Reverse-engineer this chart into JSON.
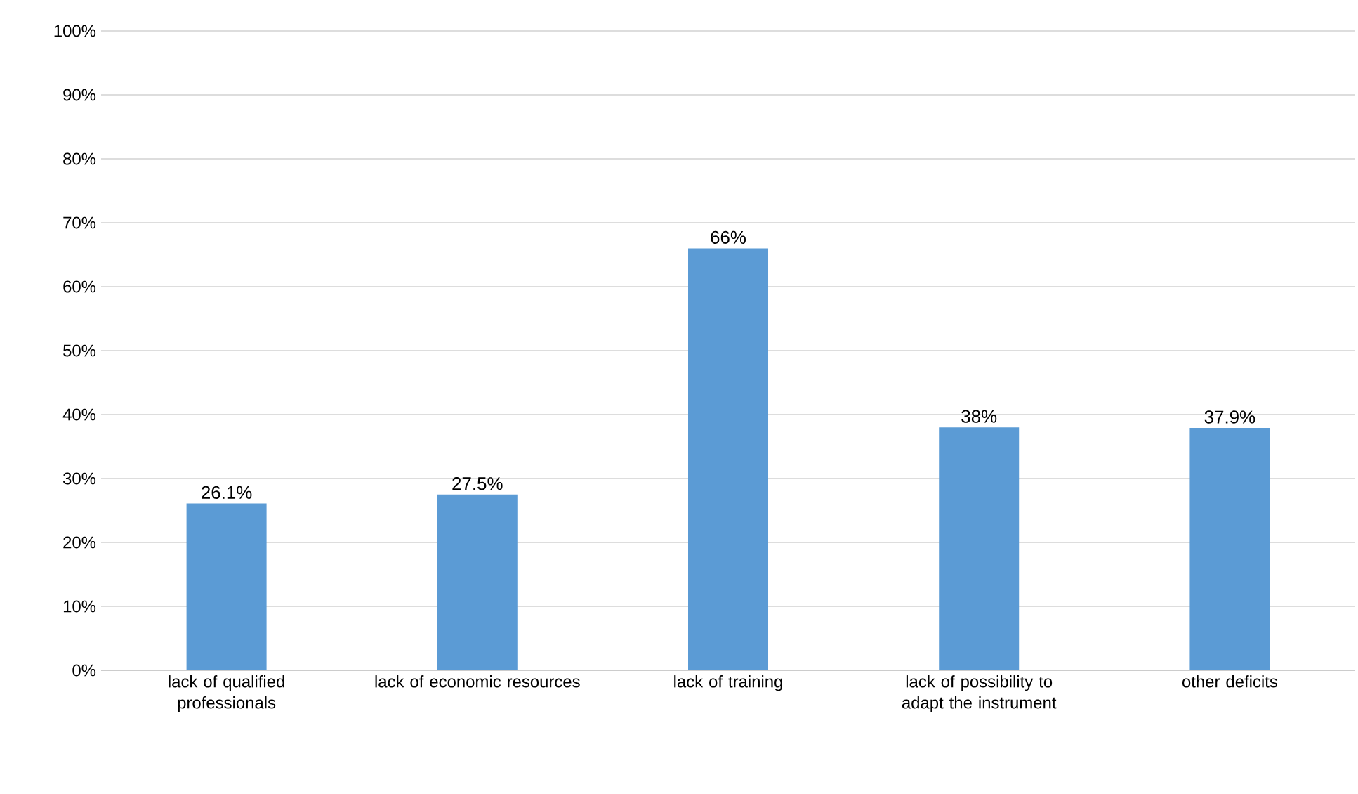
{
  "chart_data": {
    "type": "bar",
    "categories": [
      "lack of qualified professionals",
      "lack of economic resources",
      "lack of training",
      "lack of possibility to adapt the instrument",
      "other deficits"
    ],
    "values": [
      26.1,
      27.5,
      66,
      38,
      37.9
    ],
    "value_labels": [
      "26.1%",
      "27.5%",
      "66%",
      "38%",
      "37.9%"
    ],
    "color": "#5b9bd5",
    "ylim": [
      0,
      100
    ],
    "yticks": [
      {
        "value": 0,
        "label": "0%"
      },
      {
        "value": 10,
        "label": "10%"
      },
      {
        "value": 20,
        "label": "20%"
      },
      {
        "value": 30,
        "label": "30%"
      },
      {
        "value": 40,
        "label": "40%"
      },
      {
        "value": 50,
        "label": "50%"
      },
      {
        "value": 60,
        "label": "60%"
      },
      {
        "value": 70,
        "label": "70%"
      },
      {
        "value": 80,
        "label": "80%"
      },
      {
        "value": 90,
        "label": "90%"
      },
      {
        "value": 100,
        "label": "100%"
      }
    ],
    "grid": "y"
  }
}
